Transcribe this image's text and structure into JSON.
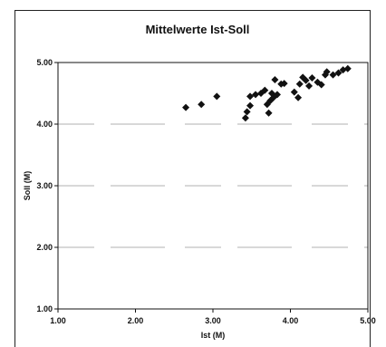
{
  "chart_data": {
    "type": "scatter",
    "title": "Mittelwerte Ist-Soll",
    "xlabel": "Ist (M)",
    "ylabel": "Soll (M)",
    "xlim": [
      1.0,
      5.0
    ],
    "ylim": [
      1.0,
      5.0
    ],
    "xticks": [
      "1.00",
      "2.00",
      "3.00",
      "4.00",
      "5.00"
    ],
    "yticks": [
      "1.00",
      "2.00",
      "3.00",
      "4.00",
      "5.00"
    ],
    "grid": true,
    "marker": "diamond",
    "marker_color": "#111111",
    "points": [
      {
        "x": 2.65,
        "y": 4.27
      },
      {
        "x": 2.85,
        "y": 4.32
      },
      {
        "x": 3.05,
        "y": 4.45
      },
      {
        "x": 3.42,
        "y": 4.1
      },
      {
        "x": 3.44,
        "y": 4.2
      },
      {
        "x": 3.48,
        "y": 4.3
      },
      {
        "x": 3.48,
        "y": 4.45
      },
      {
        "x": 3.55,
        "y": 4.48
      },
      {
        "x": 3.62,
        "y": 4.5
      },
      {
        "x": 3.67,
        "y": 4.55
      },
      {
        "x": 3.7,
        "y": 4.32
      },
      {
        "x": 3.72,
        "y": 4.18
      },
      {
        "x": 3.74,
        "y": 4.38
      },
      {
        "x": 3.76,
        "y": 4.5
      },
      {
        "x": 3.78,
        "y": 4.43
      },
      {
        "x": 3.8,
        "y": 4.72
      },
      {
        "x": 3.83,
        "y": 4.48
      },
      {
        "x": 3.88,
        "y": 4.65
      },
      {
        "x": 3.92,
        "y": 4.66
      },
      {
        "x": 4.05,
        "y": 4.52
      },
      {
        "x": 4.1,
        "y": 4.43
      },
      {
        "x": 4.12,
        "y": 4.65
      },
      {
        "x": 4.16,
        "y": 4.76
      },
      {
        "x": 4.2,
        "y": 4.71
      },
      {
        "x": 4.24,
        "y": 4.62
      },
      {
        "x": 4.28,
        "y": 4.75
      },
      {
        "x": 4.35,
        "y": 4.68
      },
      {
        "x": 4.4,
        "y": 4.64
      },
      {
        "x": 4.45,
        "y": 4.8
      },
      {
        "x": 4.47,
        "y": 4.85
      },
      {
        "x": 4.55,
        "y": 4.8
      },
      {
        "x": 4.62,
        "y": 4.83
      },
      {
        "x": 4.68,
        "y": 4.88
      },
      {
        "x": 4.74,
        "y": 4.9
      }
    ]
  }
}
